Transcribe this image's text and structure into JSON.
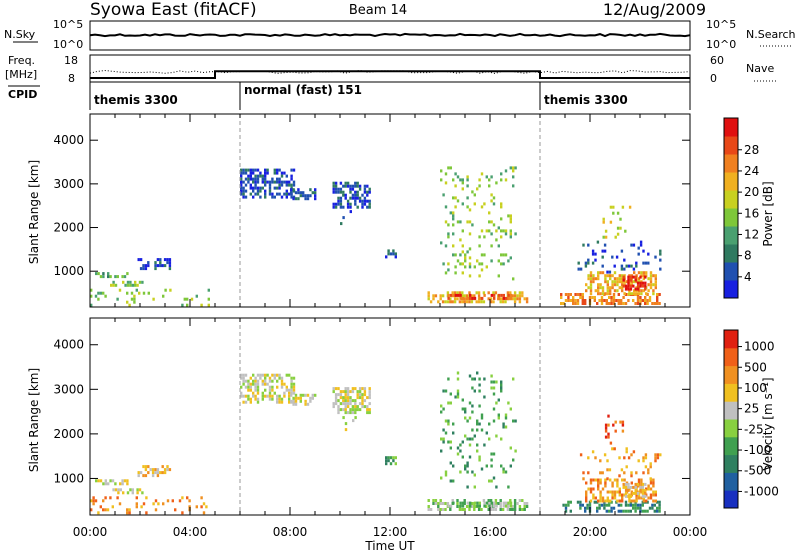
{
  "header": {
    "title": "Syowa East (fitACF)",
    "beam": "Beam 14",
    "date": "12/Aug/2009"
  },
  "panels": {
    "nsky": {
      "label": "N.Sky",
      "right_label": "N.Search",
      "left_ticks": [
        "10^5",
        "10^0"
      ],
      "right_ticks": [
        "10^5",
        "10^0"
      ]
    },
    "freq": {
      "label_line1": "Freq.",
      "label_line2": "[MHz]",
      "right_label": "Nave",
      "left_ticks": [
        "18",
        "8"
      ],
      "right_ticks": [
        "60",
        "0"
      ],
      "freq_steps": [
        {
          "start_h": 0,
          "end_h": 5.0,
          "mhz": 9.5
        },
        {
          "start_h": 5.0,
          "end_h": 18.0,
          "mhz": 12.0
        },
        {
          "start_h": 18.0,
          "end_h": 24.0,
          "mhz": 9.5
        }
      ]
    },
    "cpid": {
      "label": "CPID",
      "segments": [
        {
          "start_h": 0,
          "end_h": 6,
          "text": "themis 3300"
        },
        {
          "start_h": 6,
          "end_h": 18,
          "text": "normal (fast) 151"
        },
        {
          "start_h": 18,
          "end_h": 24,
          "text": "themis 3300"
        }
      ]
    }
  },
  "chart_data": [
    {
      "type": "heatmap",
      "name_key": "power",
      "ylabel": "Slant Range [km]",
      "xlabel": "Time UT",
      "x_ticks": [
        "00:00",
        "04:00",
        "08:00",
        "12:00",
        "16:00",
        "20:00",
        "00:00"
      ],
      "xlim_hours": [
        0,
        24
      ],
      "y_ticks": [
        1000,
        2000,
        3000,
        4000
      ],
      "ylim_km": [
        180,
        4600
      ],
      "colorbar": {
        "label": "Power [dB]",
        "tick_labels": [
          "4",
          "8",
          "12",
          "16",
          "20",
          "24",
          "28"
        ],
        "colors": [
          "#1820e0",
          "#2050b0",
          "#2f7a60",
          "#4aa070",
          "#7ec73a",
          "#c8d020",
          "#f0b020",
          "#f08020",
          "#e84818",
          "#e01010"
        ]
      },
      "regions": [
        {
          "t0": 0.2,
          "t1": 1.5,
          "r0": 880,
          "r1": 980,
          "level": 3
        },
        {
          "t0": 0.8,
          "t1": 2.2,
          "r0": 700,
          "r1": 780,
          "level": 4
        },
        {
          "t0": 1.9,
          "t1": 3.2,
          "r0": 1050,
          "r1": 1300,
          "level": 1
        },
        {
          "t0": 0.0,
          "t1": 4.8,
          "r0": 200,
          "r1": 600,
          "level": 4,
          "sparse": true
        },
        {
          "t0": 6.0,
          "t1": 8.2,
          "r0": 2700,
          "r1": 3350,
          "level": 1
        },
        {
          "t0": 8.0,
          "t1": 9.0,
          "r0": 2650,
          "r1": 2900,
          "level": 1
        },
        {
          "t0": 9.7,
          "t1": 11.2,
          "r0": 2500,
          "r1": 3050,
          "level": 1
        },
        {
          "t0": 10.0,
          "t1": 10.6,
          "r0": 2100,
          "r1": 2400,
          "level": 1,
          "sparse": true
        },
        {
          "t0": 11.8,
          "t1": 12.2,
          "r0": 1300,
          "r1": 1500,
          "level": 1
        },
        {
          "t0": 13.5,
          "t1": 17.5,
          "r0": 280,
          "r1": 540,
          "level": 6
        },
        {
          "t0": 14.2,
          "t1": 16.8,
          "r0": 360,
          "r1": 480,
          "level": 8
        },
        {
          "t0": 14.0,
          "t1": 17.0,
          "r0": 800,
          "r1": 3400,
          "level": 4,
          "sparse": true
        },
        {
          "t0": 18.8,
          "t1": 22.8,
          "r0": 280,
          "r1": 500,
          "level": 7
        },
        {
          "t0": 19.8,
          "t1": 22.6,
          "r0": 500,
          "r1": 1000,
          "level": 6
        },
        {
          "t0": 19.5,
          "t1": 22.8,
          "r0": 1000,
          "r1": 1700,
          "level": 1,
          "sparse": true
        },
        {
          "t0": 20.5,
          "t1": 21.6,
          "r0": 1800,
          "r1": 2500,
          "level": 5,
          "sparse": true
        },
        {
          "t0": 21.3,
          "t1": 22.2,
          "r0": 600,
          "r1": 900,
          "level": 9
        }
      ]
    },
    {
      "type": "heatmap",
      "name_key": "velocity",
      "ylabel": "Slant Range [km]",
      "xlabel": "Time UT",
      "x_ticks": [
        "00:00",
        "04:00",
        "08:00",
        "12:00",
        "16:00",
        "20:00",
        "00:00"
      ],
      "xlim_hours": [
        0,
        24
      ],
      "y_ticks": [
        1000,
        2000,
        3000,
        4000
      ],
      "ylim_km": [
        180,
        4600
      ],
      "colorbar": {
        "label": "Velocity [m s⁻¹]",
        "tick_labels": [
          "1000",
          "500",
          "100",
          "25",
          "-25",
          "-100",
          "-500",
          "-1000"
        ],
        "colors": [
          "#1830c0",
          "#2060a0",
          "#2f8060",
          "#40a050",
          "#88d040",
          "#c0c0c0",
          "#f0c020",
          "#f09020",
          "#f06018",
          "#e02010"
        ]
      },
      "regions": [
        {
          "t0": 0.2,
          "t1": 1.5,
          "r0": 880,
          "r1": 980,
          "level": 5
        },
        {
          "t0": 0.8,
          "t1": 2.2,
          "r0": 700,
          "r1": 780,
          "level": 5
        },
        {
          "t0": 1.9,
          "t1": 3.2,
          "r0": 1050,
          "r1": 1300,
          "level": 6
        },
        {
          "t0": 0.0,
          "t1": 4.8,
          "r0": 200,
          "r1": 600,
          "level": 7,
          "sparse": true
        },
        {
          "t0": 6.0,
          "t1": 8.2,
          "r0": 2700,
          "r1": 3350,
          "level": 5
        },
        {
          "t0": 8.0,
          "t1": 9.0,
          "r0": 2650,
          "r1": 2900,
          "level": 5
        },
        {
          "t0": 9.7,
          "t1": 11.2,
          "r0": 2500,
          "r1": 3050,
          "level": 5
        },
        {
          "t0": 10.0,
          "t1": 10.6,
          "r0": 2100,
          "r1": 2400,
          "level": 5,
          "sparse": true
        },
        {
          "t0": 11.8,
          "t1": 12.2,
          "r0": 1300,
          "r1": 1500,
          "level": 3
        },
        {
          "t0": 13.5,
          "t1": 17.5,
          "r0": 280,
          "r1": 540,
          "level": 4
        },
        {
          "t0": 14.2,
          "t1": 16.8,
          "r0": 360,
          "r1": 480,
          "level": 4
        },
        {
          "t0": 14.0,
          "t1": 17.0,
          "r0": 800,
          "r1": 3400,
          "level": 3,
          "sparse": true
        },
        {
          "t0": 18.8,
          "t1": 22.8,
          "r0": 280,
          "r1": 500,
          "level": 2
        },
        {
          "t0": 19.8,
          "t1": 22.6,
          "r0": 500,
          "r1": 1000,
          "level": 7
        },
        {
          "t0": 19.5,
          "t1": 22.8,
          "r0": 1000,
          "r1": 1700,
          "level": 7,
          "sparse": true
        },
        {
          "t0": 20.5,
          "t1": 21.6,
          "r0": 1800,
          "r1": 2500,
          "level": 8,
          "sparse": true
        },
        {
          "t0": 21.3,
          "t1": 22.2,
          "r0": 600,
          "r1": 900,
          "level": 6
        }
      ]
    }
  ]
}
